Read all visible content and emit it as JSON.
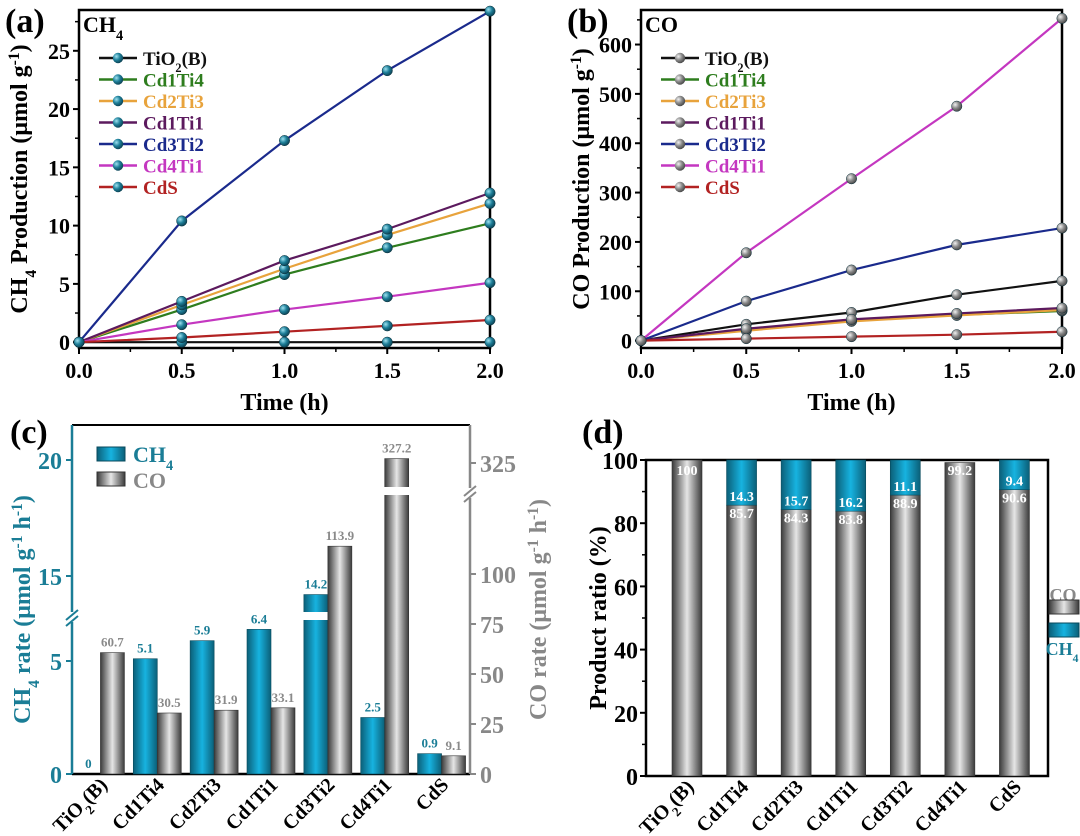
{
  "chart_data": [
    {
      "id": "a",
      "panel_label": "(a)",
      "type": "line",
      "title": "CH4",
      "xlabel": "Time (h)",
      "ylabel": "CH4 Production (μmol g-1)",
      "x": [
        0,
        0.5,
        1.0,
        1.5,
        2.0
      ],
      "xlim": [
        0,
        2.0
      ],
      "ylim": [
        -0.5,
        28.5
      ],
      "xticks": [
        "0.0",
        "0.5",
        "1.0",
        "1.5",
        "2.0"
      ],
      "yticks": [
        0,
        5,
        10,
        15,
        20,
        25
      ],
      "marker_color": "#1e7f99",
      "legend_position": "top-left",
      "series": [
        {
          "name": "TiO2(B)",
          "color": "#111111",
          "values": [
            0,
            0,
            0,
            0,
            0
          ]
        },
        {
          "name": "Cd1Ti4",
          "color": "#2e7d1e",
          "values": [
            0,
            2.8,
            5.8,
            8.1,
            10.2
          ]
        },
        {
          "name": "Cd2Ti3",
          "color": "#e8a33c",
          "values": [
            0,
            3.2,
            6.3,
            9.2,
            11.9
          ]
        },
        {
          "name": "Cd1Ti1",
          "color": "#5c1a5e",
          "values": [
            0,
            3.5,
            7.0,
            9.7,
            12.8
          ]
        },
        {
          "name": "Cd3Ti2",
          "color": "#1a2a8c",
          "values": [
            0,
            10.4,
            17.3,
            23.3,
            28.4
          ]
        },
        {
          "name": "Cd4Ti1",
          "color": "#c437c0",
          "values": [
            0,
            1.5,
            2.8,
            3.9,
            5.1
          ]
        },
        {
          "name": "CdS",
          "color": "#b22222",
          "values": [
            0,
            0.4,
            0.9,
            1.4,
            1.9
          ]
        }
      ]
    },
    {
      "id": "b",
      "panel_label": "(b)",
      "type": "line",
      "title": "CO",
      "xlabel": "Time (h)",
      "ylabel": "CO Production (μmol g-1)",
      "x": [
        0,
        0.5,
        1.0,
        1.5,
        2.0
      ],
      "xlim": [
        0,
        2.0
      ],
      "ylim": [
        -15,
        670
      ],
      "xticks": [
        "0.0",
        "0.5",
        "1.0",
        "1.5",
        "2.0"
      ],
      "yticks": [
        0,
        100,
        200,
        300,
        400,
        500,
        600
      ],
      "marker_color": "#8a8a8a",
      "legend_position": "top-left",
      "series": [
        {
          "name": "TiO2(B)",
          "color": "#111111",
          "values": [
            0,
            33,
            57,
            93,
            121
          ]
        },
        {
          "name": "Cd1Ti4",
          "color": "#2e7d1e",
          "values": [
            0,
            21,
            40,
            52,
            60
          ]
        },
        {
          "name": "Cd2Ti3",
          "color": "#e8a33c",
          "values": [
            0,
            20,
            39,
            51,
            62
          ]
        },
        {
          "name": "Cd1Ti1",
          "color": "#5c1a5e",
          "values": [
            0,
            24,
            43,
            55,
            66
          ]
        },
        {
          "name": "Cd3Ti2",
          "color": "#1a2a8c",
          "values": [
            0,
            80,
            143,
            194,
            228
          ]
        },
        {
          "name": "Cd4Ti1",
          "color": "#c437c0",
          "values": [
            0,
            178,
            328,
            475,
            653
          ]
        },
        {
          "name": "CdS",
          "color": "#b22222",
          "values": [
            0,
            4,
            8,
            12,
            18
          ]
        }
      ]
    },
    {
      "id": "c",
      "panel_label": "(c)",
      "type": "bar",
      "categories": [
        "TiO2(B)",
        "Cd1Ti4",
        "Cd2Ti3",
        "Cd1Ti1",
        "Cd3Ti2",
        "Cd4Ti1",
        "CdS"
      ],
      "ylabel_left": "CH4 rate (μmol g-1 h-1)",
      "ylabel_right": "CO rate (μmol g-1 h-1)",
      "yticks_left": [
        0,
        5,
        15,
        20
      ],
      "yticks_right": [
        0,
        25,
        50,
        75,
        100,
        325
      ],
      "left_axis_break": [
        6.5,
        13.5
      ],
      "right_axis_break": [
        125,
        320
      ],
      "legend_position": "top-left",
      "series": [
        {
          "name": "CH4",
          "color": "#139bc2",
          "axis": "left",
          "values": [
            0,
            5.1,
            5.9,
            6.4,
            14.2,
            2.5,
            0.9
          ],
          "labels": [
            "0",
            "5.1",
            "5.9",
            "6.4",
            "14.2",
            "2.5",
            "0.9"
          ]
        },
        {
          "name": "CO",
          "color": "#9a9a9a",
          "axis": "right",
          "values": [
            60.7,
            30.5,
            31.9,
            33.1,
            113.9,
            327.2,
            9.1
          ],
          "labels": [
            "60.7",
            "30.5",
            "31.9",
            "33.1",
            "113.9",
            "327.2",
            "9.1"
          ]
        }
      ]
    },
    {
      "id": "d",
      "panel_label": "(d)",
      "type": "bar",
      "stacked": true,
      "categories": [
        "TiO2(B)",
        "Cd1Ti4",
        "Cd2Ti3",
        "Cd1Ti1",
        "Cd3Ti2",
        "Cd4Ti1",
        "CdS"
      ],
      "ylabel": "Product ratio (%)",
      "ylim": [
        0,
        100
      ],
      "yticks": [
        0,
        20,
        40,
        60,
        80,
        100
      ],
      "legend_position": "right",
      "series": [
        {
          "name": "CO",
          "color": "#9a9a9a",
          "values": [
            100,
            85.7,
            84.3,
            83.8,
            88.9,
            99.2,
            90.6
          ],
          "labels": [
            "100",
            "85.7",
            "84.3",
            "83.8",
            "88.9",
            "99.2",
            "90.6"
          ]
        },
        {
          "name": "CH4",
          "color": "#139bc2",
          "values": [
            0,
            14.3,
            15.7,
            16.2,
            11.1,
            0.8,
            9.4
          ],
          "labels": [
            "",
            "14.3",
            "15.7",
            "16.2",
            "11.1",
            "",
            "9.4"
          ]
        }
      ]
    }
  ]
}
